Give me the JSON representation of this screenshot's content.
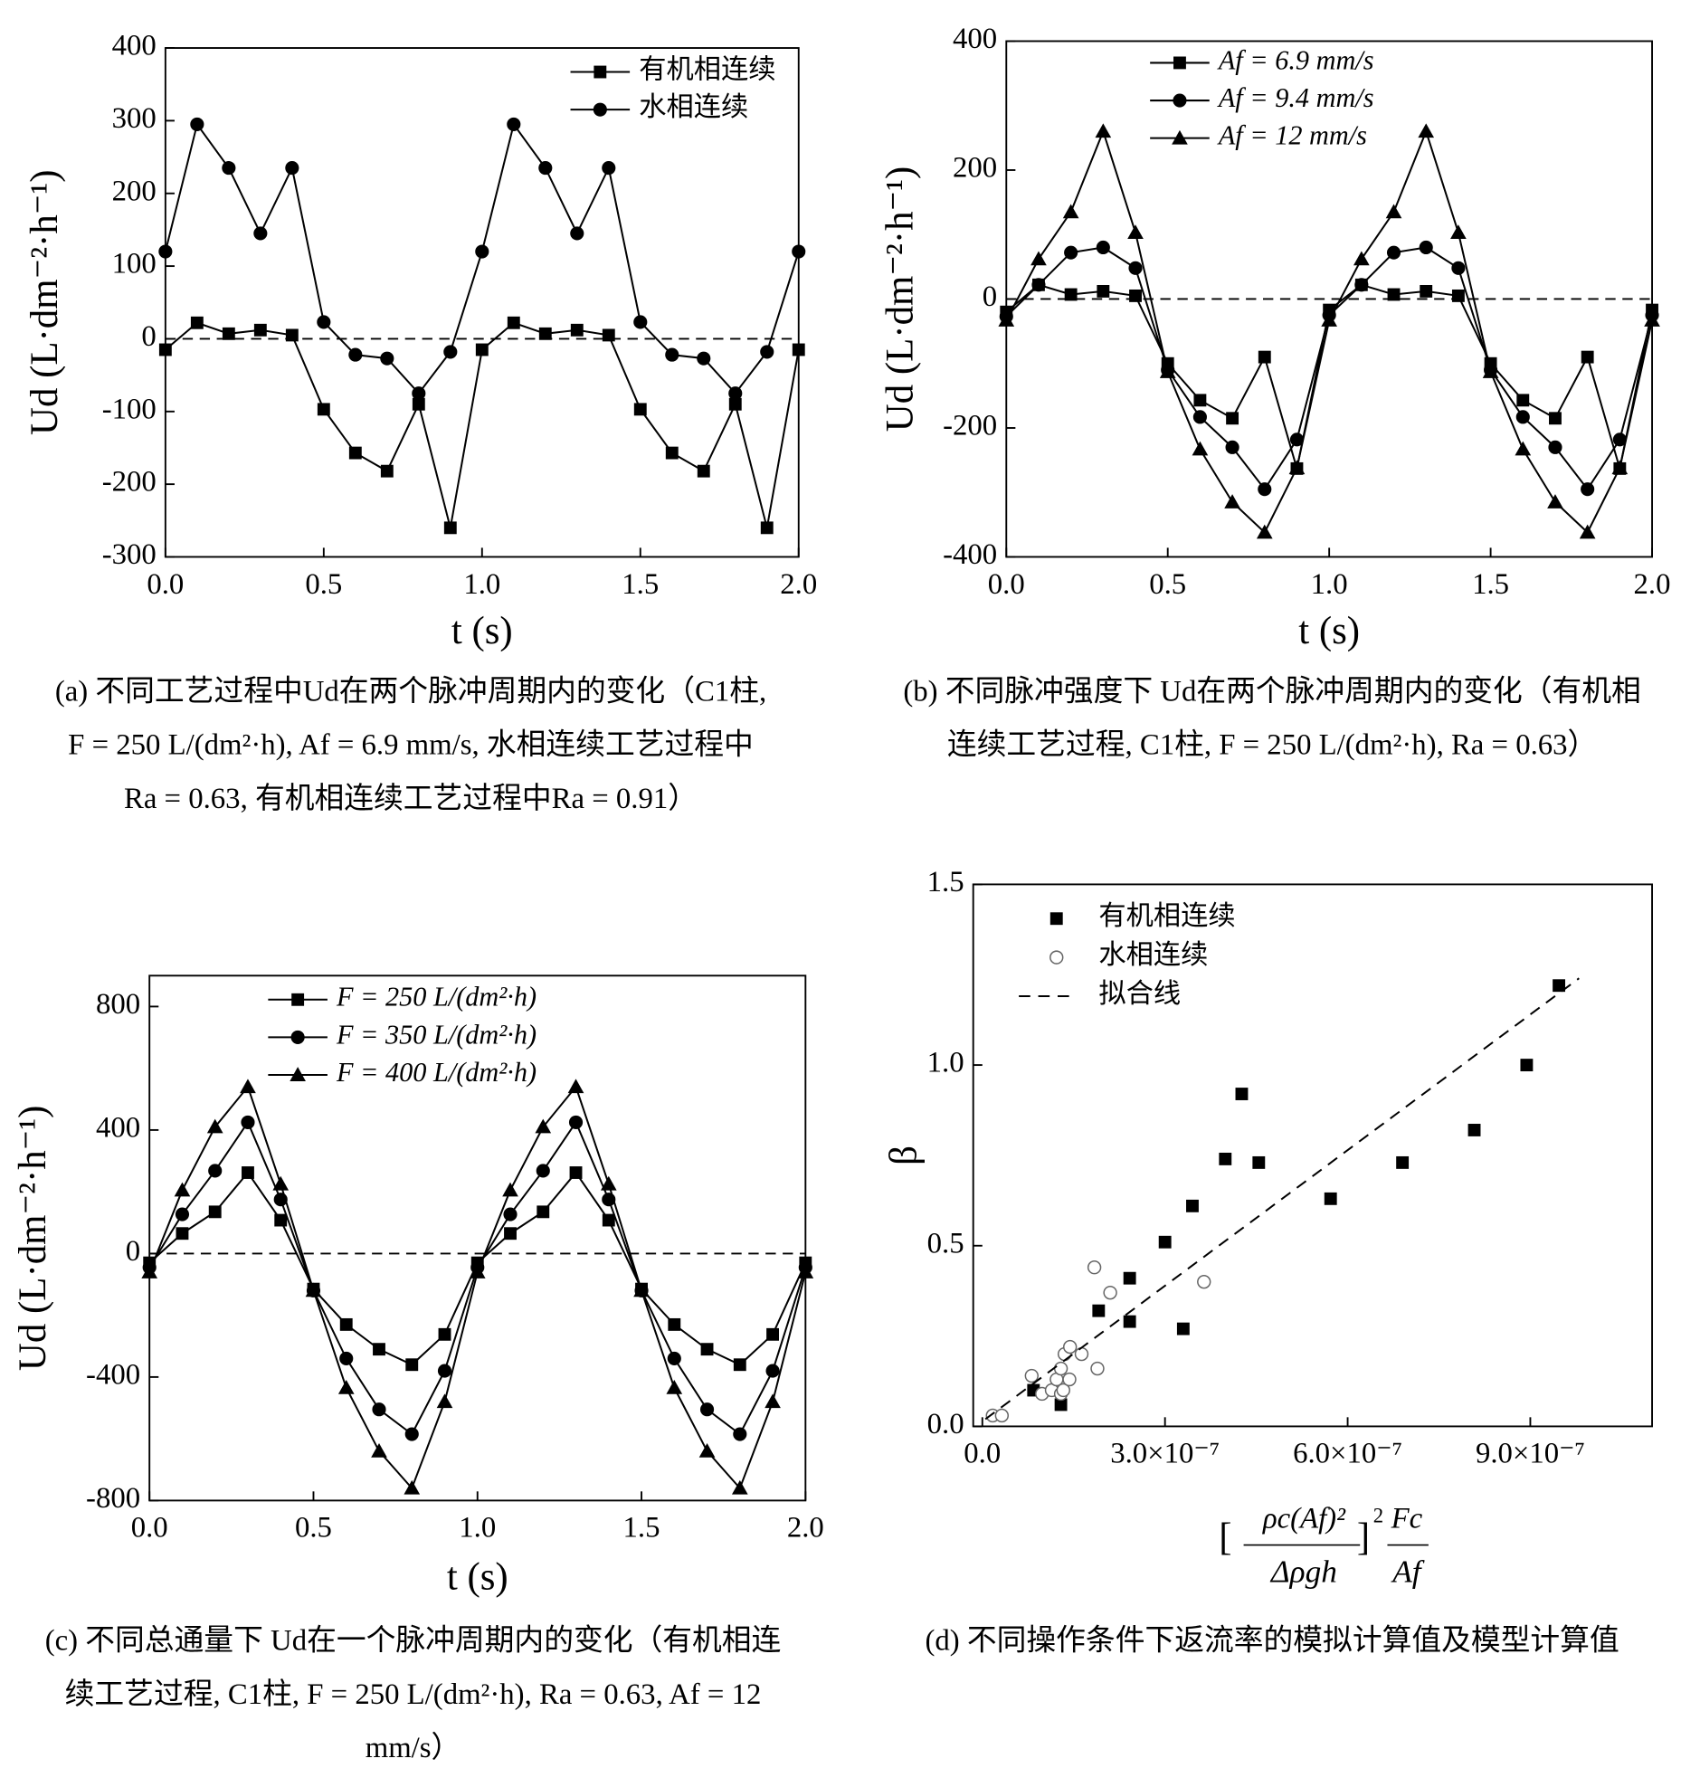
{
  "chart_data": [
    {
      "type": "line",
      "x": [
        0,
        0.1,
        0.2,
        0.3,
        0.4,
        0.5,
        0.6,
        0.7,
        0.8,
        0.9,
        1,
        1.1,
        1.2,
        1.3,
        1.4,
        1.5,
        1.6,
        1.7,
        1.8,
        1.9,
        2
      ],
      "series": [
        {
          "name": "有机相连续",
          "color": "#000000",
          "marker": "square",
          "values": [
            -15,
            22,
            7,
            12,
            5,
            -97,
            -157,
            -182,
            -90,
            -260,
            -15,
            22,
            7,
            12,
            5,
            -97,
            -157,
            -182,
            -90,
            -260,
            -15
          ]
        },
        {
          "name": "水相连续",
          "color": "#000000",
          "marker": "circle",
          "values": [
            120,
            295,
            235,
            145,
            235,
            23,
            -22,
            -27,
            -75,
            -18,
            120,
            295,
            235,
            145,
            235,
            23,
            -22,
            -27,
            -75,
            -18,
            120
          ]
        }
      ],
      "xlim": [
        0,
        2
      ],
      "xticks": [
        {
          "value": 0,
          "label": "0.0"
        },
        0.5,
        {
          "value": 1,
          "label": "1.0"
        },
        1.5,
        {
          "value": 2,
          "label": "2.0"
        }
      ],
      "ylim": [
        -300,
        400
      ],
      "yticks": [
        -300,
        -200,
        -100,
        0,
        100,
        200,
        300,
        400
      ],
      "reference_line": 0,
      "legend": "upper right",
      "x_label": "t (s)",
      "y_label": "Ud (L·dm⁻²·h⁻¹)",
      "caption": [
        "(a) 不同工艺过程中Ud在两个脉冲周期内的变化（C1柱,",
        "F = 250 L/(dm²·h), Af = 6.9 mm/s, 水相连续工艺过程中",
        "Ra = 0.63, 有机相连续工艺过程中Ra = 0.91）"
      ]
    },
    {
      "type": "line",
      "x": [
        0,
        0.1,
        0.2,
        0.3,
        0.4,
        0.5,
        0.6,
        0.7,
        0.8,
        0.9,
        1,
        1.1,
        1.2,
        1.3,
        1.4,
        1.5,
        1.6,
        1.7,
        1.8,
        1.9,
        2
      ],
      "series": [
        {
          "name": "Af = 6.9 mm/s",
          "color": "#000000",
          "marker": "square",
          "values": [
            -20,
            22,
            7,
            12,
            5,
            -100,
            -157,
            -185,
            -90,
            -263,
            -17,
            22,
            7,
            12,
            5,
            -100,
            -157,
            -185,
            -90,
            -263,
            -17
          ]
        },
        {
          "name": "Af = 9.4 mm/s",
          "color": "#000000",
          "marker": "circle",
          "values": [
            -27,
            22,
            72,
            80,
            48,
            -110,
            -183,
            -230,
            -295,
            -218,
            -25,
            22,
            72,
            80,
            48,
            -110,
            -183,
            -230,
            -295,
            -218,
            -25
          ]
        },
        {
          "name": "Af = 12 mm/s",
          "color": "#000000",
          "marker": "triangle",
          "values": [
            -33,
            62,
            135,
            260,
            103,
            -113,
            -233,
            -315,
            -362,
            -262,
            -33,
            62,
            135,
            260,
            103,
            -113,
            -233,
            -315,
            -362,
            -262,
            -33
          ]
        }
      ],
      "xlim": [
        0,
        2
      ],
      "xticks": [
        {
          "value": 0,
          "label": "0.0"
        },
        0.5,
        {
          "value": 1,
          "label": "1.0"
        },
        1.5,
        {
          "value": 2,
          "label": "2.0"
        }
      ],
      "ylim": [
        -400,
        400
      ],
      "yticks": [
        -400,
        -200,
        0,
        200,
        400
      ],
      "reference_line": 0,
      "legend": "upper left",
      "x_label": "t (s)",
      "y_label": "Ud (L·dm⁻²·h⁻¹)",
      "caption": [
        "(b) 不同脉冲强度下 Ud在两个脉冲周期内的变化（有机相",
        "连续工艺过程, C1柱, F = 250 L/(dm²·h), Ra = 0.63）"
      ]
    },
    {
      "type": "line",
      "x": [
        0,
        0.1,
        0.2,
        0.3,
        0.4,
        0.5,
        0.6,
        0.7,
        0.8,
        0.9,
        1,
        1.1,
        1.2,
        1.3,
        1.4,
        1.5,
        1.6,
        1.7,
        1.8,
        1.9,
        2
      ],
      "series": [
        {
          "name": "F = 250 L/(dm²·h)",
          "color": "#000000",
          "marker": "square",
          "values": [
            -30,
            65,
            135,
            262,
            108,
            -115,
            -230,
            -310,
            -360,
            -262,
            -30,
            65,
            135,
            262,
            108,
            -115,
            -230,
            -310,
            -360,
            -262,
            -30
          ]
        },
        {
          "name": "F = 350 L/(dm²·h)",
          "color": "#000000",
          "marker": "circle",
          "values": [
            -45,
            127,
            268,
            425,
            175,
            -120,
            -340,
            -505,
            -585,
            -380,
            -45,
            127,
            268,
            425,
            175,
            -120,
            -340,
            -505,
            -585,
            -380,
            -45
          ]
        },
        {
          "name": "F = 400 L/(dm²·h)",
          "color": "#000000",
          "marker": "triangle",
          "values": [
            -60,
            205,
            410,
            540,
            225,
            -120,
            -435,
            -640,
            -760,
            -480,
            -60,
            205,
            410,
            540,
            225,
            -120,
            -435,
            -640,
            -760,
            -480,
            -60
          ]
        }
      ],
      "xlim": [
        0,
        2
      ],
      "xticks": [
        {
          "value": 0,
          "label": "0.0"
        },
        0.5,
        {
          "value": 1,
          "label": "1.0"
        },
        1.5,
        {
          "value": 2,
          "label": "2.0"
        }
      ],
      "ylim": [
        -800,
        900
      ],
      "yticks": [
        -800,
        -400,
        0,
        400,
        800
      ],
      "reference_line": 0,
      "legend": "upper left",
      "x_label": "t (s)",
      "y_label": "Ud (L·dm⁻²·h⁻¹)",
      "caption": [
        "(c) 不同总通量下 Ud在一个脉冲周期内的变化（有机相连",
        "续工艺过程, C1柱, F = 250 L/(dm²·h), Ra = 0.63, Af = 12",
        "mm/s）"
      ]
    },
    {
      "type": "scatter",
      "series": [
        {
          "name": "有机相连续",
          "color": "#000000",
          "marker": "square",
          "x": [
            8.4e-08,
            1.29e-07,
            1.91e-07,
            2.42e-07,
            2.42e-07,
            3e-07,
            3.3e-07,
            3.45e-07,
            3.99e-07,
            4.26e-07,
            4.54e-07,
            5.72e-07,
            6.9e-07,
            8.08e-07,
            8.94e-07,
            9.47e-07
          ],
          "values": [
            0.1,
            0.06,
            0.32,
            0.41,
            0.29,
            0.51,
            0.27,
            0.61,
            0.74,
            0.92,
            0.73,
            0.63,
            0.73,
            0.82,
            1.0,
            1.22
          ]
        },
        {
          "name": "水相连续",
          "color": "#000000",
          "marker": "circle-open",
          "x": [
            1.7e-08,
            3.2e-08,
            8.1e-08,
            9.8e-08,
            1.14e-07,
            1.22e-07,
            1.29e-07,
            1.29e-07,
            1.33e-07,
            1.35e-07,
            1.43e-07,
            1.44e-07,
            1.63e-07,
            1.89e-07,
            1.84e-07,
            2.1e-07,
            3.64e-07
          ],
          "values": [
            0.03,
            0.03,
            0.14,
            0.09,
            0.1,
            0.13,
            0.09,
            0.16,
            0.1,
            0.2,
            0.13,
            0.22,
            0.2,
            0.16,
            0.44,
            0.37,
            0.4
          ]
        },
        {
          "name": "拟合线",
          "color": "#000000",
          "line": "dashed",
          "x": [
            5e-09,
            9.8e-07
          ],
          "values": [
            0.02,
            1.24
          ]
        }
      ],
      "xlim": [
        -1.5e-08,
        1.1e-06
      ],
      "xticks": [
        {
          "value": 0,
          "label": "0.0"
        },
        {
          "value": 3e-07,
          "label": "3.0×10⁻⁷"
        },
        {
          "value": 6e-07,
          "label": "6.0×10⁻⁷"
        },
        {
          "value": 9e-07,
          "label": "9.0×10⁻⁷"
        }
      ],
      "ylim": [
        0,
        1.5
      ],
      "yticks": [
        {
          "value": 0,
          "label": "0.0"
        },
        0.5,
        {
          "value": 1,
          "label": "1.0"
        },
        1.5
      ],
      "legend": "upper left",
      "x_label": {
        "open": "[",
        "numerator": "ρc(Af)²",
        "denominator": "Δρgh",
        "close": "]",
        "power": "2",
        "factor_numerator": "Fc",
        "factor_denominator": "Af"
      },
      "y_label": "β",
      "caption": [
        "(d) 不同操作条件下返流率的模拟计算值及模型计算值"
      ]
    }
  ]
}
